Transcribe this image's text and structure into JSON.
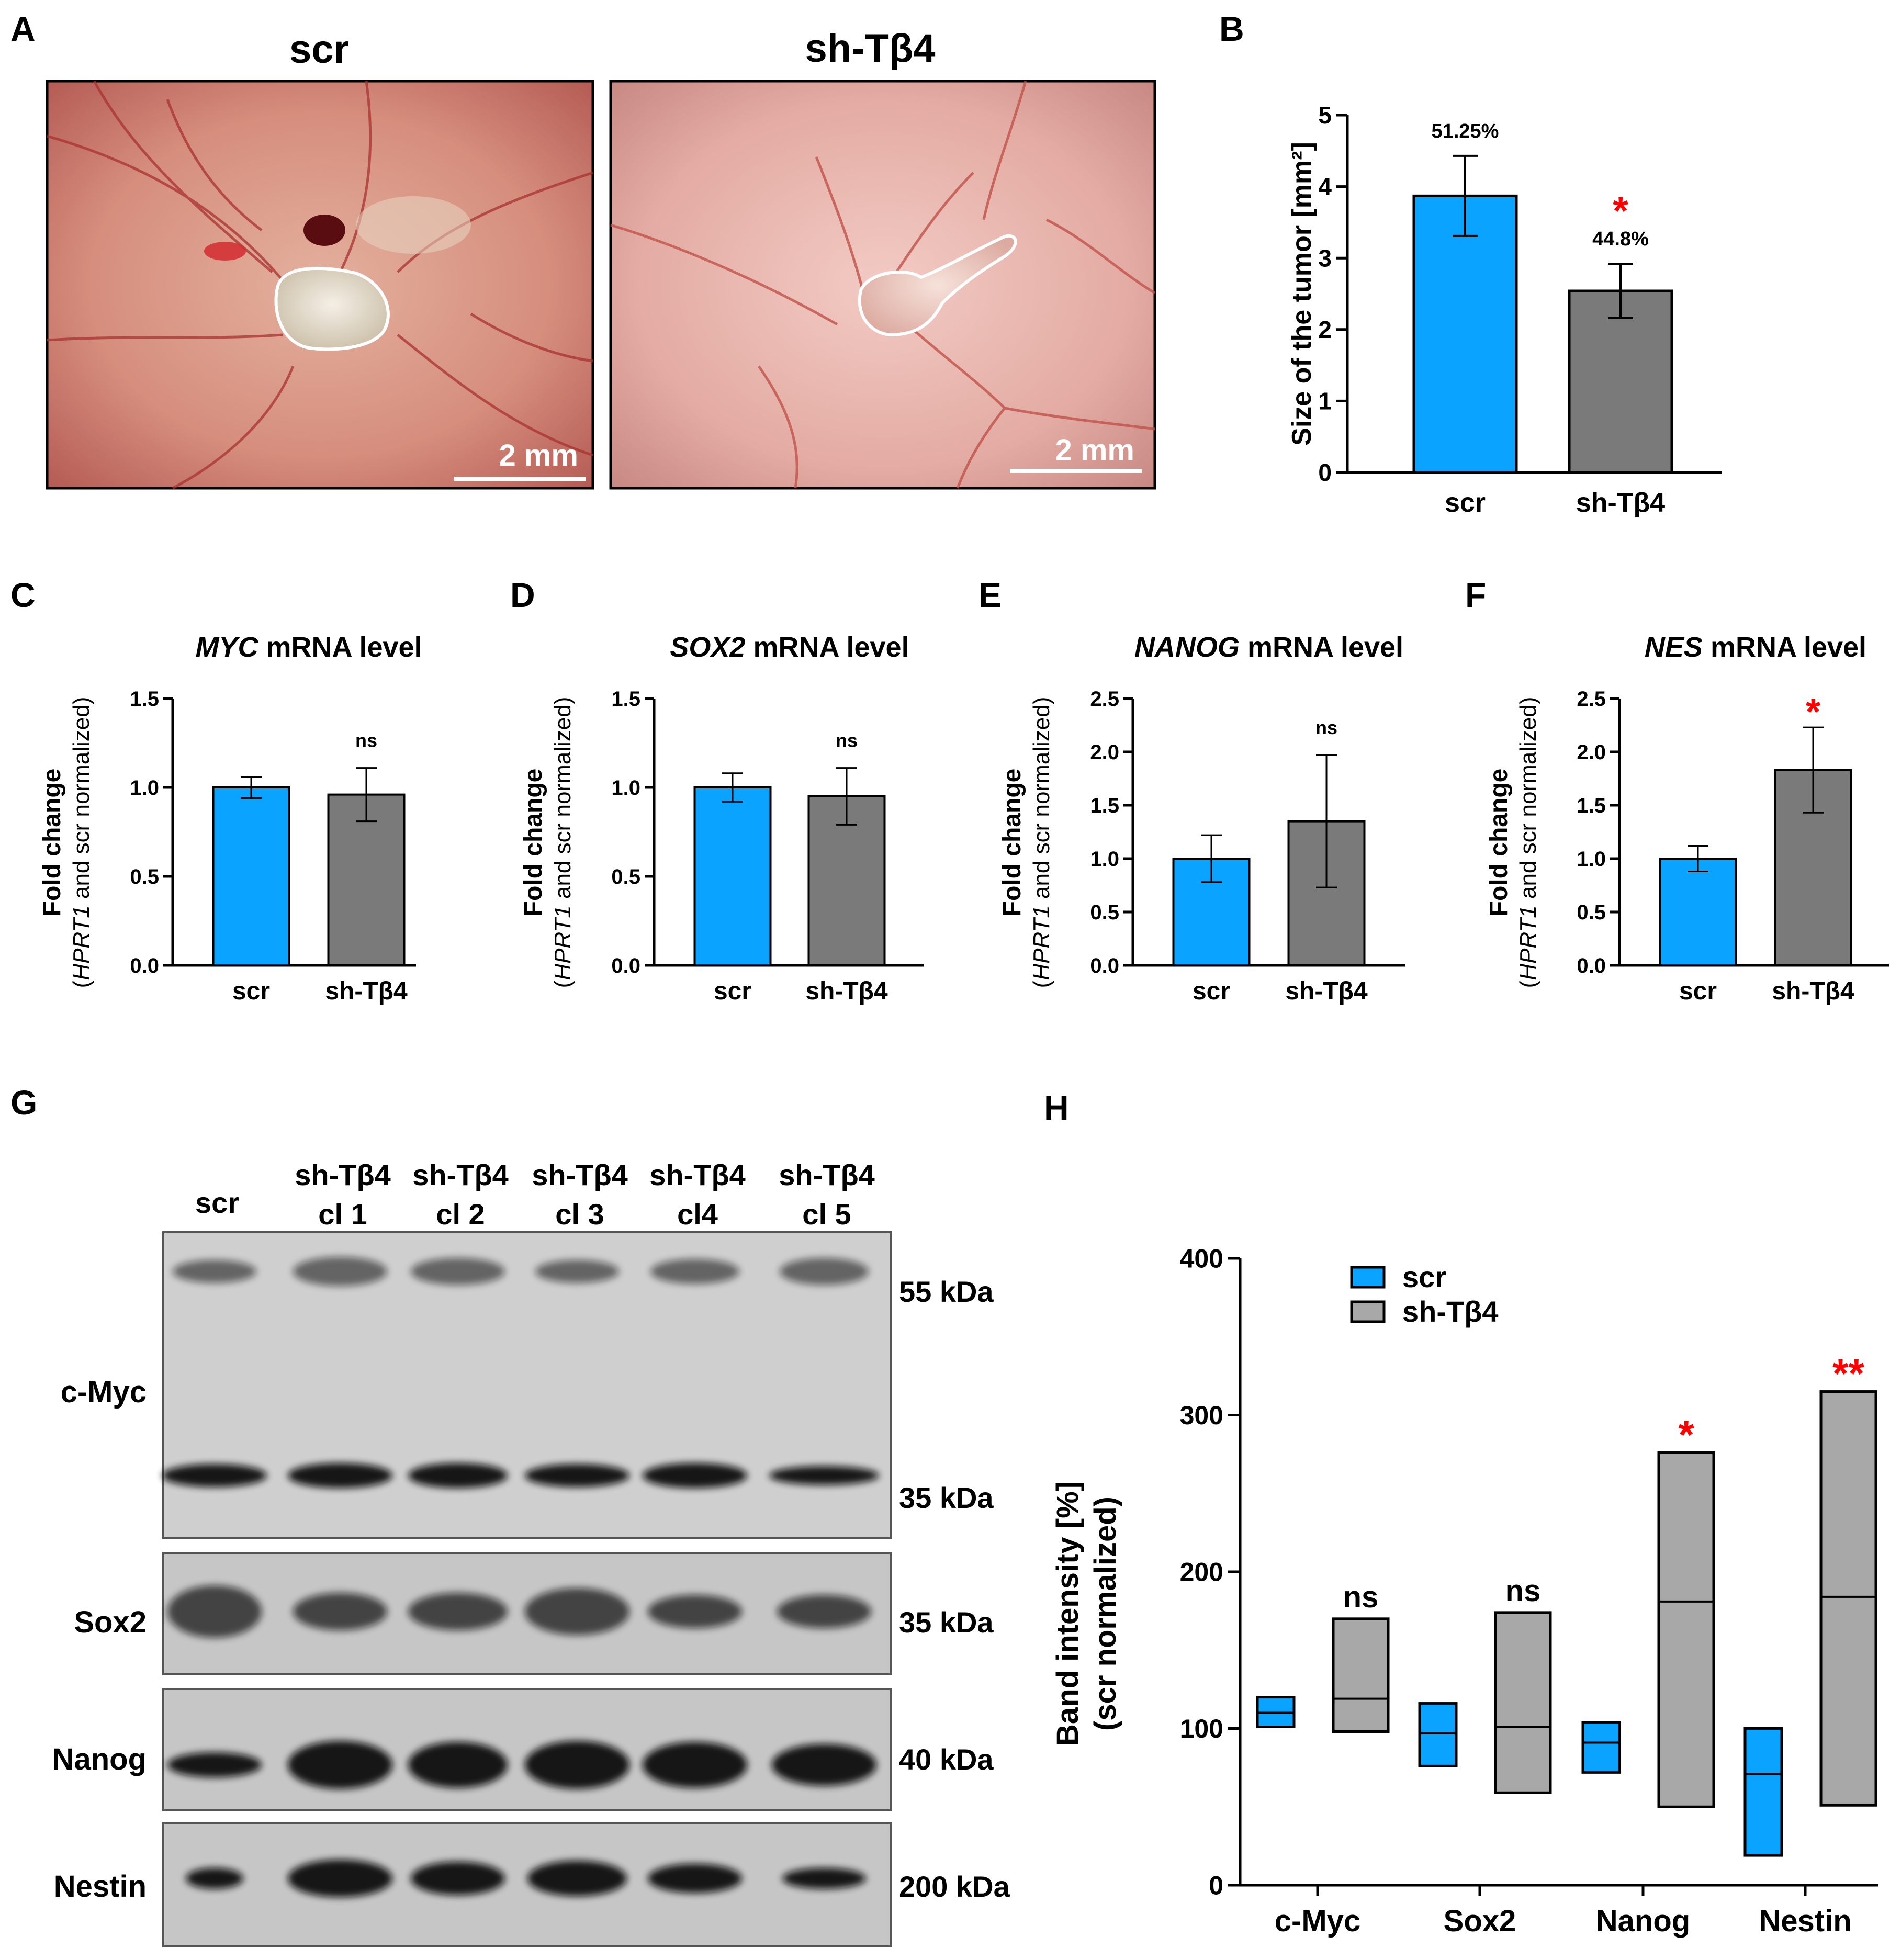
{
  "colors": {
    "scr": "#0aa3ff",
    "sh": "#7a7a7a",
    "sh_light": "#a8a8a8",
    "sig": "#ff0000",
    "axis": "#000000"
  },
  "panel_A": {
    "label": "A",
    "scr_title": "scr",
    "sh_title": "sh-Tβ4",
    "scalebar": "2 mm"
  },
  "panel_G": {
    "label": "G",
    "lanes": [
      {
        "line1": "scr",
        "line2": ""
      },
      {
        "line1": "sh-Tβ4",
        "line2": "cl 1"
      },
      {
        "line1": "sh-Tβ4",
        "line2": "cl 2"
      },
      {
        "line1": "sh-Tβ4",
        "line2": "cl 3"
      },
      {
        "line1": "sh-Tβ4",
        "line2": "cl4"
      },
      {
        "line1": "sh-Tβ4",
        "line2": "cl 5"
      }
    ],
    "blots": [
      {
        "protein": "c-Myc",
        "sizes": [
          "55 kDa",
          "35 kDa"
        ]
      },
      {
        "protein": "Sox2",
        "sizes": [
          "35 kDa"
        ]
      },
      {
        "protein": "Nanog",
        "sizes": [
          "40 kDa"
        ]
      },
      {
        "protein": "Nestin",
        "sizes": [
          "200 kDa"
        ]
      }
    ]
  },
  "chart_data": [
    {
      "panel": "B",
      "type": "bar",
      "title": "",
      "xlabel": "",
      "ylabel": "Size of the tumor [mm²]",
      "ylim": [
        0,
        5
      ],
      "yticks": [
        "0",
        "1",
        "2",
        "3",
        "4",
        "5"
      ],
      "categories": [
        "scr",
        "sh-Tβ4"
      ],
      "values": [
        3.87,
        2.54
      ],
      "errors": [
        0.56,
        0.38
      ],
      "data_labels": [
        "51.25%",
        "44.8%"
      ],
      "significance": [
        "",
        "*"
      ]
    },
    {
      "panel": "C",
      "type": "bar",
      "title_italic": "MYC",
      "title_rest": " mRNA level",
      "ylabel_main": "Fold change",
      "ylabel_italic": "HPRT1",
      "ylabel_rest": " and scr normalized",
      "ylim": [
        0,
        1.5
      ],
      "yticks": [
        "0.0",
        "0.5",
        "1.0",
        "1.5"
      ],
      "categories": [
        "scr",
        "sh-Tβ4"
      ],
      "values": [
        1.0,
        0.96
      ],
      "errors": [
        0.06,
        0.15
      ],
      "significance": [
        "",
        "ns"
      ]
    },
    {
      "panel": "D",
      "type": "bar",
      "title_italic": "SOX2",
      "title_rest": " mRNA level",
      "ylabel_main": "Fold change",
      "ylabel_italic": "HPRT1",
      "ylabel_rest": " and scr normalized",
      "ylim": [
        0,
        1.5
      ],
      "yticks": [
        "0.0",
        "0.5",
        "1.0",
        "1.5"
      ],
      "categories": [
        "scr",
        "sh-Tβ4"
      ],
      "values": [
        1.0,
        0.95
      ],
      "errors": [
        0.08,
        0.16
      ],
      "significance": [
        "",
        "ns"
      ]
    },
    {
      "panel": "E",
      "type": "bar",
      "title_italic": "NANOG",
      "title_rest": " mRNA level",
      "ylabel_main": "Fold change",
      "ylabel_italic": "HPRT1",
      "ylabel_rest": " and scr normalized",
      "ylim": [
        0,
        2.5
      ],
      "yticks": [
        "0.0",
        "0.5",
        "1.0",
        "1.5",
        "2.0",
        "2.5"
      ],
      "categories": [
        "scr",
        "sh-Tβ4"
      ],
      "values": [
        1.0,
        1.35
      ],
      "errors": [
        0.22,
        0.62
      ],
      "significance": [
        "",
        "ns"
      ]
    },
    {
      "panel": "F",
      "type": "bar",
      "title_italic": "NES",
      "title_rest": " mRNA level",
      "ylabel_main": "Fold change",
      "ylabel_italic": "HPRT1",
      "ylabel_rest": " and scr normalized",
      "ylim": [
        0,
        2.5
      ],
      "yticks": [
        "0.0",
        "0.5",
        "1.0",
        "1.5",
        "2.0",
        "2.5"
      ],
      "categories": [
        "scr",
        "sh-Tβ4"
      ],
      "values": [
        1.0,
        1.83
      ],
      "errors": [
        0.12,
        0.4
      ],
      "significance": [
        "",
        "*"
      ]
    },
    {
      "panel": "H",
      "type": "box",
      "ylabel": "Band intensity [%]",
      "ylabel2": "(scr normalized)",
      "ylim": [
        0,
        400
      ],
      "yticks": [
        "0",
        "100",
        "200",
        "300",
        "400"
      ],
      "categories": [
        "c-Myc",
        "Sox2",
        "Nanog",
        "Nestin"
      ],
      "legend": [
        "scr",
        "sh-Tβ4"
      ],
      "legend_position": "top-left",
      "series": [
        {
          "name": "scr",
          "boxes": [
            {
              "min": 101,
              "mid": 110,
              "max": 120
            },
            {
              "min": 76,
              "mid": 97,
              "max": 116
            },
            {
              "min": 72,
              "mid": 91,
              "max": 104
            },
            {
              "min": 19,
              "mid": 71,
              "max": 100
            }
          ]
        },
        {
          "name": "sh-Tβ4",
          "boxes": [
            {
              "min": 98,
              "mid": 119,
              "max": 170
            },
            {
              "min": 59,
              "mid": 101,
              "max": 174
            },
            {
              "min": 50,
              "mid": 181,
              "max": 276
            },
            {
              "min": 51,
              "mid": 184,
              "max": 315
            }
          ]
        }
      ],
      "significance": [
        "ns",
        "ns",
        "*",
        "**"
      ]
    }
  ]
}
